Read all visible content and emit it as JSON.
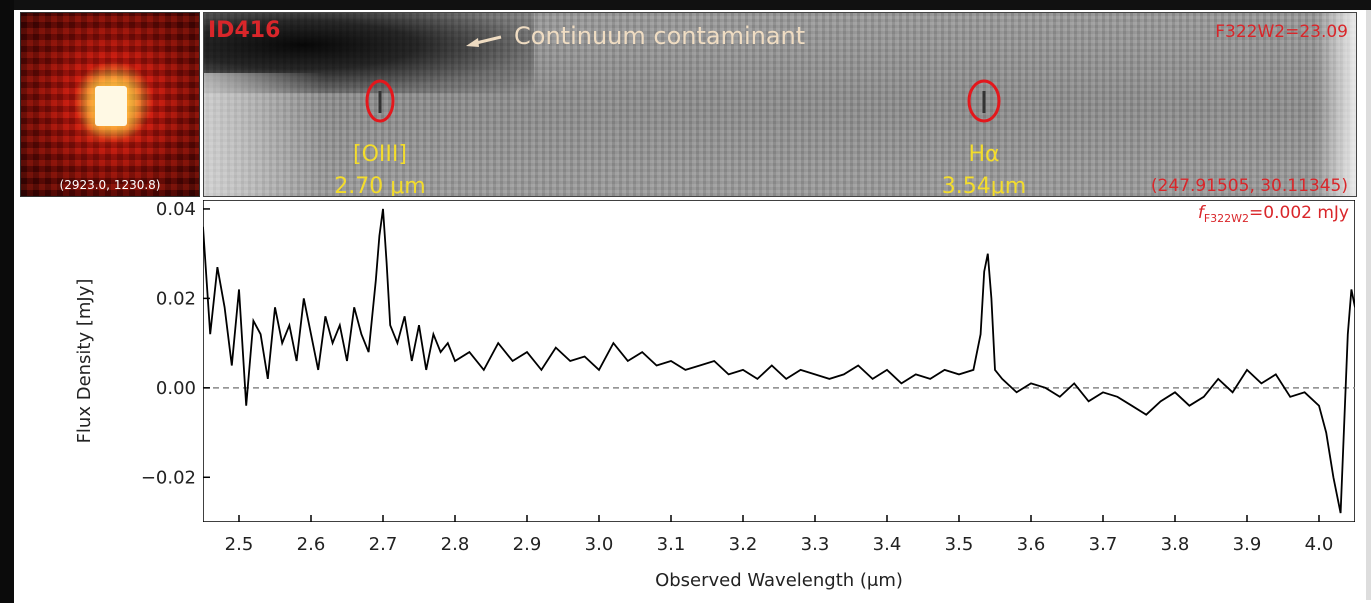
{
  "thumbnail": {
    "coords_label": "(2923.0, 1230.8)"
  },
  "spectrum_2d": {
    "id_label": "ID416",
    "contaminant_label": "Continuum contaminant",
    "magnitude_label": "F322W2=23.09",
    "radec_label": "(247.91505, 30.11345)",
    "lines": [
      {
        "name": "[OIII]",
        "wavelength_label": "2.70 μm",
        "wavelength": 2.7
      },
      {
        "name": "Hα",
        "wavelength_label": "3.54μm",
        "wavelength": 3.54
      }
    ],
    "colors": {
      "annotation": "#d9262a",
      "line_label": "#f3dc2c",
      "contaminant": "#efdcc2"
    }
  },
  "chart_data": {
    "type": "line",
    "title": "",
    "xlabel": "Observed Wavelength (μm)",
    "ylabel": "Flux Density [mJy]",
    "xlim": [
      2.45,
      4.05
    ],
    "ylim": [
      -0.03,
      0.042
    ],
    "xticks": [
      2.5,
      2.6,
      2.7,
      2.8,
      2.9,
      3.0,
      3.1,
      3.2,
      3.3,
      3.4,
      3.5,
      3.6,
      3.7,
      3.8,
      3.9,
      4.0
    ],
    "xtick_labels": [
      "2.5",
      "2.6",
      "2.7",
      "2.8",
      "2.9",
      "3.0",
      "3.1",
      "3.2",
      "3.3",
      "3.4",
      "3.5",
      "3.6",
      "3.7",
      "3.8",
      "3.9",
      "4.0"
    ],
    "yticks": [
      -0.02,
      0.0,
      0.02,
      0.04
    ],
    "ytick_labels": [
      "−0.02",
      "0.00",
      "0.02",
      "0.04"
    ],
    "annotation": "f_F322W2=0.002 mJy",
    "annotation_parts": {
      "symbol": "f",
      "subscript": "F322W2",
      "rest": "=0.002 mJy"
    },
    "zero_line": {
      "y": 0,
      "style": "dashed",
      "color": "#888888"
    },
    "grid": false,
    "series": [
      {
        "color": "#000000",
        "x": [
          2.45,
          2.46,
          2.47,
          2.48,
          2.49,
          2.5,
          2.51,
          2.52,
          2.53,
          2.54,
          2.55,
          2.56,
          2.57,
          2.58,
          2.59,
          2.6,
          2.61,
          2.62,
          2.63,
          2.64,
          2.65,
          2.66,
          2.67,
          2.68,
          2.69,
          2.695,
          2.7,
          2.705,
          2.71,
          2.72,
          2.73,
          2.74,
          2.75,
          2.76,
          2.77,
          2.78,
          2.79,
          2.8,
          2.82,
          2.84,
          2.86,
          2.88,
          2.9,
          2.92,
          2.94,
          2.96,
          2.98,
          3.0,
          3.02,
          3.04,
          3.06,
          3.08,
          3.1,
          3.12,
          3.14,
          3.16,
          3.18,
          3.2,
          3.22,
          3.24,
          3.26,
          3.28,
          3.3,
          3.32,
          3.34,
          3.36,
          3.38,
          3.4,
          3.42,
          3.44,
          3.46,
          3.48,
          3.5,
          3.52,
          3.53,
          3.535,
          3.54,
          3.545,
          3.55,
          3.56,
          3.58,
          3.6,
          3.62,
          3.64,
          3.66,
          3.68,
          3.7,
          3.72,
          3.74,
          3.76,
          3.78,
          3.8,
          3.82,
          3.84,
          3.86,
          3.88,
          3.9,
          3.92,
          3.94,
          3.96,
          3.98,
          4.0,
          4.01,
          4.02,
          4.03,
          4.04,
          4.045,
          4.05
        ],
        "y": [
          0.036,
          0.012,
          0.027,
          0.018,
          0.005,
          0.022,
          -0.004,
          0.015,
          0.012,
          0.002,
          0.018,
          0.01,
          0.014,
          0.006,
          0.02,
          0.012,
          0.004,
          0.016,
          0.01,
          0.014,
          0.006,
          0.018,
          0.012,
          0.008,
          0.024,
          0.034,
          0.04,
          0.028,
          0.014,
          0.01,
          0.016,
          0.006,
          0.014,
          0.004,
          0.012,
          0.008,
          0.01,
          0.006,
          0.008,
          0.004,
          0.01,
          0.006,
          0.008,
          0.004,
          0.009,
          0.006,
          0.007,
          0.004,
          0.01,
          0.006,
          0.008,
          0.005,
          0.006,
          0.004,
          0.005,
          0.006,
          0.003,
          0.004,
          0.002,
          0.005,
          0.002,
          0.004,
          0.003,
          0.002,
          0.003,
          0.005,
          0.002,
          0.004,
          0.001,
          0.003,
          0.002,
          0.004,
          0.003,
          0.004,
          0.012,
          0.026,
          0.03,
          0.02,
          0.004,
          0.002,
          -0.001,
          0.001,
          0.0,
          -0.002,
          0.001,
          -0.003,
          -0.001,
          -0.002,
          -0.004,
          -0.006,
          -0.003,
          -0.001,
          -0.004,
          -0.002,
          0.002,
          -0.001,
          0.004,
          0.001,
          0.003,
          -0.002,
          -0.001,
          -0.004,
          -0.01,
          -0.02,
          -0.028,
          0.012,
          0.022,
          0.018
        ]
      }
    ]
  }
}
